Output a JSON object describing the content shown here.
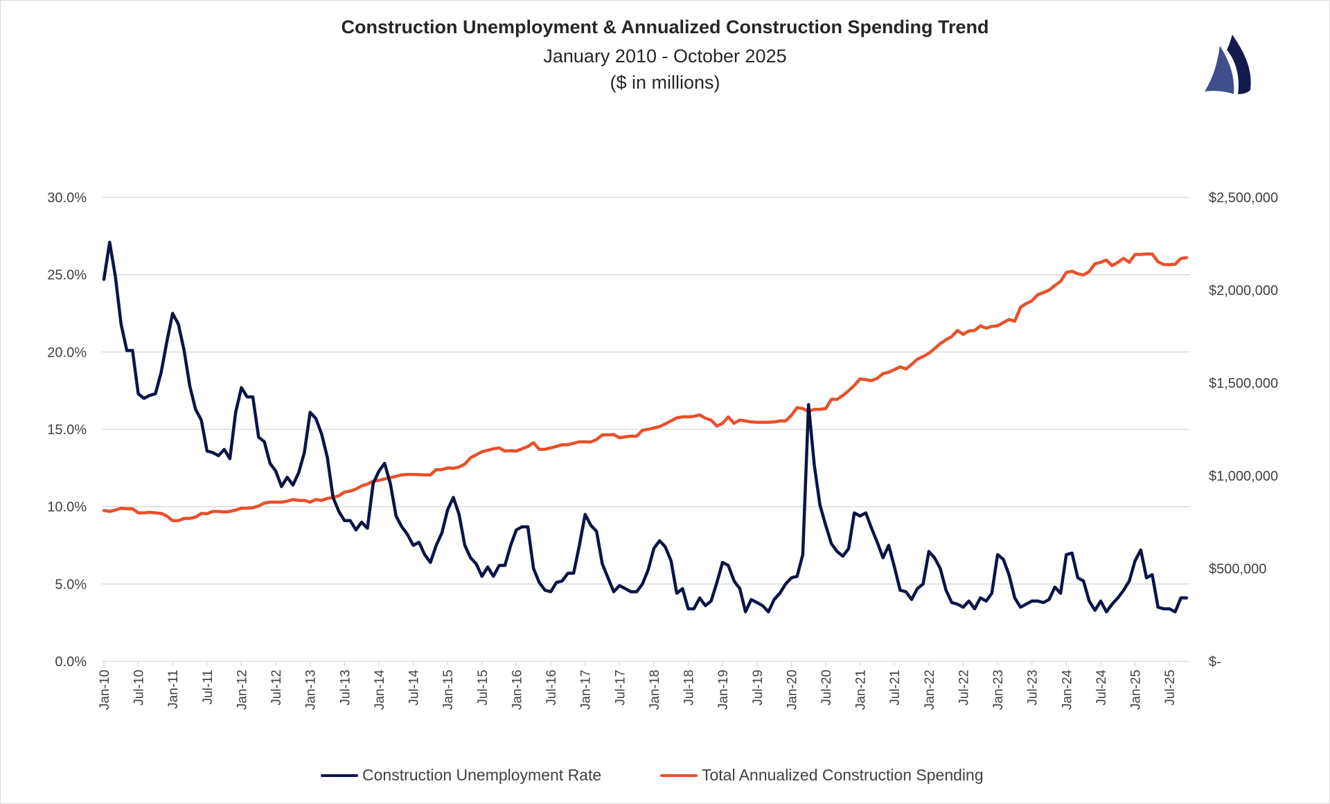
{
  "title": "Construction Unemployment & Annualized Construction Spending Trend",
  "subtitle": "January 2010 - October 2025",
  "units_note": "($ in millions)",
  "logo": {
    "icon": "sailboat-sails-logo",
    "colors": [
      "#3F4E8C",
      "#141A4E"
    ]
  },
  "chart_data": {
    "type": "line",
    "title": "Construction Unemployment & Annualized Construction Spending Trend",
    "x_start": "Jan-10",
    "x_end": "Oct-25",
    "x_frequency": "monthly",
    "x_tick_labels": [
      "Jan-10",
      "Jul-10",
      "Jan-11",
      "Jul-11",
      "Jan-12",
      "Jul-12",
      "Jan-13",
      "Jul-13",
      "Jan-14",
      "Jul-14",
      "Jan-15",
      "Jul-15",
      "Jan-16",
      "Jul-16",
      "Jan-17",
      "Jul-17",
      "Jan-18",
      "Jul-18",
      "Jan-19",
      "Jul-19",
      "Jan-20",
      "Jul-20",
      "Jan-21",
      "Jul-21",
      "Jan-22",
      "Jul-22",
      "Jan-23",
      "Jul-23",
      "Jan-24",
      "Jul-24",
      "Jan-25",
      "Jul-25"
    ],
    "y_left": {
      "ylim": [
        0,
        30
      ],
      "tick_labels": [
        "0.0%",
        "5.0%",
        "10.0%",
        "15.0%",
        "20.0%",
        "25.0%",
        "30.0%"
      ]
    },
    "y_right": {
      "ylim": [
        0,
        2500000
      ],
      "tick_labels": [
        "$-",
        "$500,000",
        "$1,000,000",
        "$1,500,000",
        "$2,000,000",
        "$2,500,000"
      ]
    },
    "grid": true,
    "legend_position": "bottom",
    "series": [
      {
        "name": "Construction Unemployment Rate",
        "axis": "left",
        "color": "#0B1447",
        "values": [
          24.7,
          27.1,
          24.9,
          21.8,
          20.1,
          20.1,
          17.3,
          17.0,
          17.2,
          17.3,
          18.7,
          20.7,
          22.5,
          21.8,
          20.1,
          17.8,
          16.3,
          15.6,
          13.6,
          13.5,
          13.3,
          13.7,
          13.1,
          16.1,
          17.7,
          17.1,
          17.1,
          14.5,
          14.2,
          12.8,
          12.3,
          11.3,
          11.9,
          11.4,
          12.2,
          13.5,
          16.1,
          15.7,
          14.7,
          13.2,
          10.6,
          9.7,
          9.1,
          9.1,
          8.5,
          9.0,
          8.6,
          11.5,
          12.3,
          12.8,
          11.5,
          9.4,
          8.7,
          8.2,
          7.5,
          7.7,
          6.9,
          6.4,
          7.5,
          8.3,
          9.8,
          10.6,
          9.5,
          7.5,
          6.7,
          6.3,
          5.5,
          6.1,
          5.5,
          6.2,
          6.2,
          7.5,
          8.5,
          8.7,
          8.7,
          6.0,
          5.1,
          4.6,
          4.5,
          5.1,
          5.2,
          5.7,
          5.7,
          7.5,
          9.5,
          8.8,
          8.4,
          6.3,
          5.4,
          4.5,
          4.9,
          4.7,
          4.5,
          4.5,
          5.0,
          5.9,
          7.3,
          7.8,
          7.4,
          6.5,
          4.4,
          4.7,
          3.4,
          3.4,
          4.1,
          3.6,
          3.9,
          5.1,
          6.4,
          6.2,
          5.2,
          4.7,
          3.2,
          4.0,
          3.8,
          3.6,
          3.2,
          4.0,
          4.4,
          5.0,
          5.4,
          5.5,
          6.9,
          16.6,
          12.7,
          10.1,
          8.8,
          7.6,
          7.1,
          6.8,
          7.3,
          9.6,
          9.4,
          9.6,
          8.6,
          7.7,
          6.7,
          7.5,
          6.1,
          4.6,
          4.5,
          4.0,
          4.7,
          5.0,
          7.1,
          6.7,
          6.0,
          4.6,
          3.8,
          3.7,
          3.5,
          3.9,
          3.4,
          4.1,
          3.9,
          4.4,
          6.9,
          6.6,
          5.6,
          4.1,
          3.5,
          3.7,
          3.9,
          3.9,
          3.8,
          4.0,
          4.8,
          4.4,
          6.9,
          7.0,
          5.4,
          5.2,
          3.9,
          3.3,
          3.9,
          3.2,
          3.7,
          4.1,
          4.6,
          5.2,
          6.5,
          7.2,
          5.4,
          5.6,
          3.5,
          3.4,
          3.4,
          3.2,
          4.1,
          4.1
        ]
      },
      {
        "name": "Total Annualized Construction Spending",
        "axis": "right",
        "color": "#E8502A",
        "values": [
          813000,
          808000,
          815000,
          825000,
          822000,
          822000,
          800000,
          800000,
          803000,
          800000,
          797000,
          783000,
          758000,
          758000,
          770000,
          770000,
          777000,
          797000,
          795000,
          808000,
          808000,
          805000,
          808000,
          815000,
          825000,
          825000,
          828000,
          837000,
          853000,
          858000,
          858000,
          858000,
          863000,
          872000,
          867000,
          867000,
          858000,
          872000,
          867000,
          878000,
          883000,
          892000,
          912000,
          917000,
          928000,
          945000,
          955000,
          972000,
          975000,
          983000,
          990000,
          997000,
          1005000,
          1007000,
          1007000,
          1006000,
          1005000,
          1005000,
          1033000,
          1033000,
          1042000,
          1040000,
          1047000,
          1063000,
          1097000,
          1113000,
          1130000,
          1137000,
          1145000,
          1150000,
          1133000,
          1135000,
          1133000,
          1145000,
          1158000,
          1178000,
          1142000,
          1143000,
          1150000,
          1158000,
          1167000,
          1167000,
          1175000,
          1183000,
          1183000,
          1182000,
          1195000,
          1220000,
          1220000,
          1222000,
          1205000,
          1210000,
          1213000,
          1213000,
          1245000,
          1250000,
          1258000,
          1265000,
          1280000,
          1295000,
          1312000,
          1317000,
          1317000,
          1320000,
          1328000,
          1310000,
          1300000,
          1267000,
          1283000,
          1317000,
          1283000,
          1300000,
          1295000,
          1290000,
          1288000,
          1288000,
          1288000,
          1290000,
          1295000,
          1295000,
          1325000,
          1367000,
          1362000,
          1347000,
          1358000,
          1358000,
          1362000,
          1412000,
          1412000,
          1433000,
          1458000,
          1487000,
          1522000,
          1518000,
          1512000,
          1525000,
          1550000,
          1558000,
          1572000,
          1587000,
          1575000,
          1600000,
          1628000,
          1642000,
          1660000,
          1685000,
          1712000,
          1733000,
          1750000,
          1783000,
          1762000,
          1780000,
          1783000,
          1808000,
          1795000,
          1805000,
          1808000,
          1825000,
          1842000,
          1833000,
          1908000,
          1928000,
          1942000,
          1975000,
          1987000,
          2000000,
          2025000,
          2047000,
          2095000,
          2102000,
          2088000,
          2082000,
          2100000,
          2142000,
          2150000,
          2162000,
          2132000,
          2150000,
          2172000,
          2150000,
          2192000,
          2192000,
          2195000,
          2195000,
          2153000,
          2138000,
          2137000,
          2140000,
          2170000,
          2175000
        ]
      }
    ]
  }
}
